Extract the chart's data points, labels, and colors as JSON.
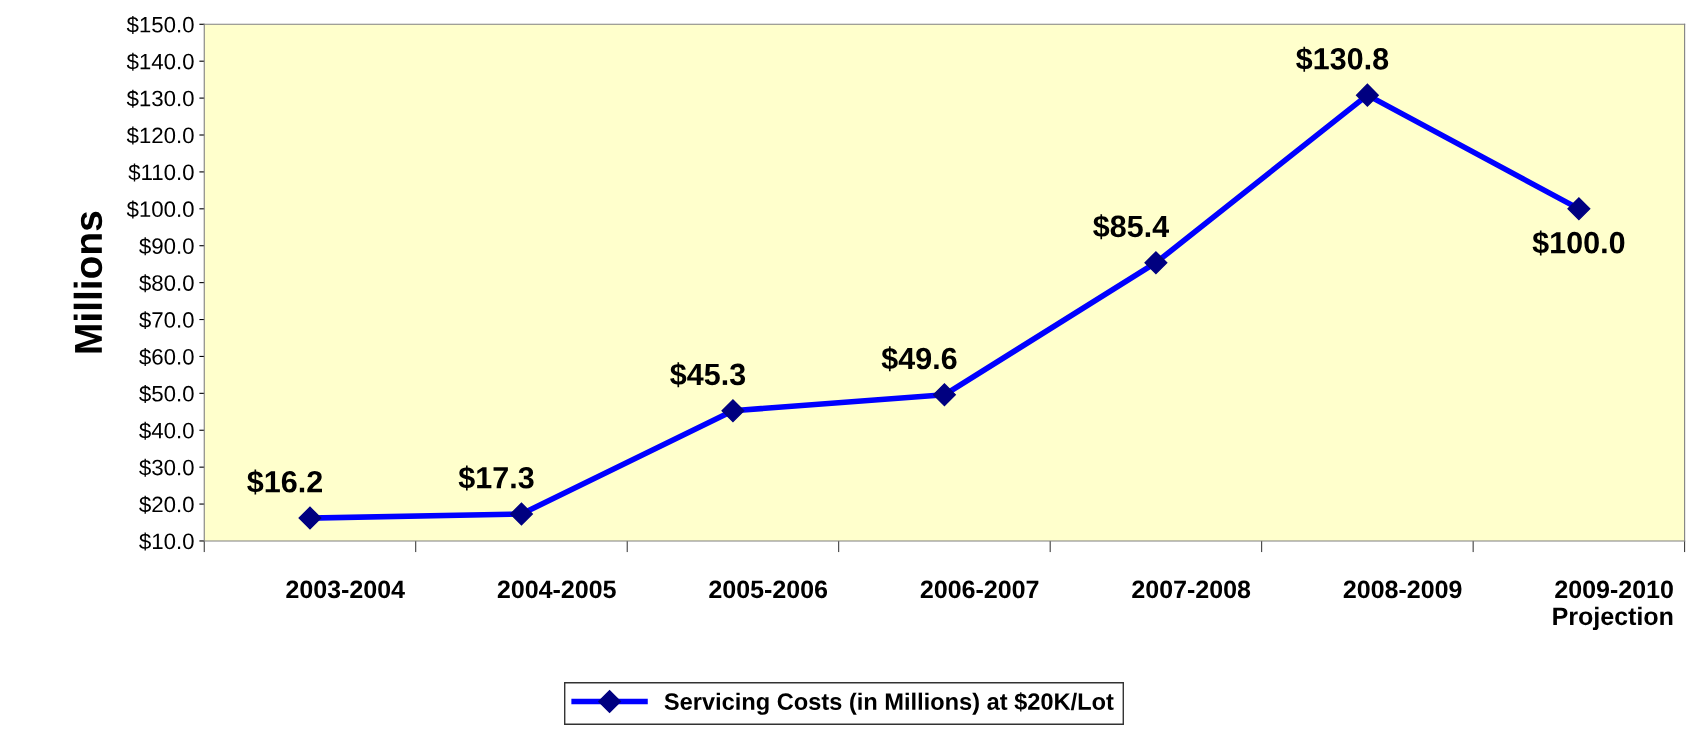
{
  "chart_data": {
    "type": "line",
    "ylabel": "Millions",
    "categories": [
      "2003-2004",
      "2004-2005",
      "2005-2006",
      "2006-2007",
      "2007-2008",
      "2008-2009",
      "2009-2010\nProjection"
    ],
    "series": [
      {
        "name": "Servicing Costs (in Millions) at $20K/Lot",
        "color": "#0000ff",
        "values": [
          16.2,
          17.3,
          45.3,
          49.6,
          85.4,
          130.8,
          100.0
        ],
        "value_labels": [
          "$16.2",
          "$17.3",
          "$45.3",
          "$49.6",
          "$85.4",
          "$130.8",
          "$100.0"
        ]
      }
    ],
    "ylim": [
      10,
      150
    ],
    "yticks": [
      {
        "value": 10,
        "label": "$10.0"
      },
      {
        "value": 20,
        "label": "$20.0"
      },
      {
        "value": 30,
        "label": "$30.0"
      },
      {
        "value": 40,
        "label": "$40.0"
      },
      {
        "value": 50,
        "label": "$50.0"
      },
      {
        "value": 60,
        "label": "$60.0"
      },
      {
        "value": 70,
        "label": "$70.0"
      },
      {
        "value": 80,
        "label": "$80.0"
      },
      {
        "value": 90,
        "label": "$90.0"
      },
      {
        "value": 100,
        "label": "$100.0"
      },
      {
        "value": 110,
        "label": "$110.0"
      },
      {
        "value": 120,
        "label": "$120.0"
      },
      {
        "value": 130,
        "label": "$130.0"
      },
      {
        "value": 140,
        "label": "$140.0"
      },
      {
        "value": 150,
        "label": "$150.0"
      }
    ],
    "marker": "diamond",
    "legend": "bottom",
    "grid": false
  }
}
